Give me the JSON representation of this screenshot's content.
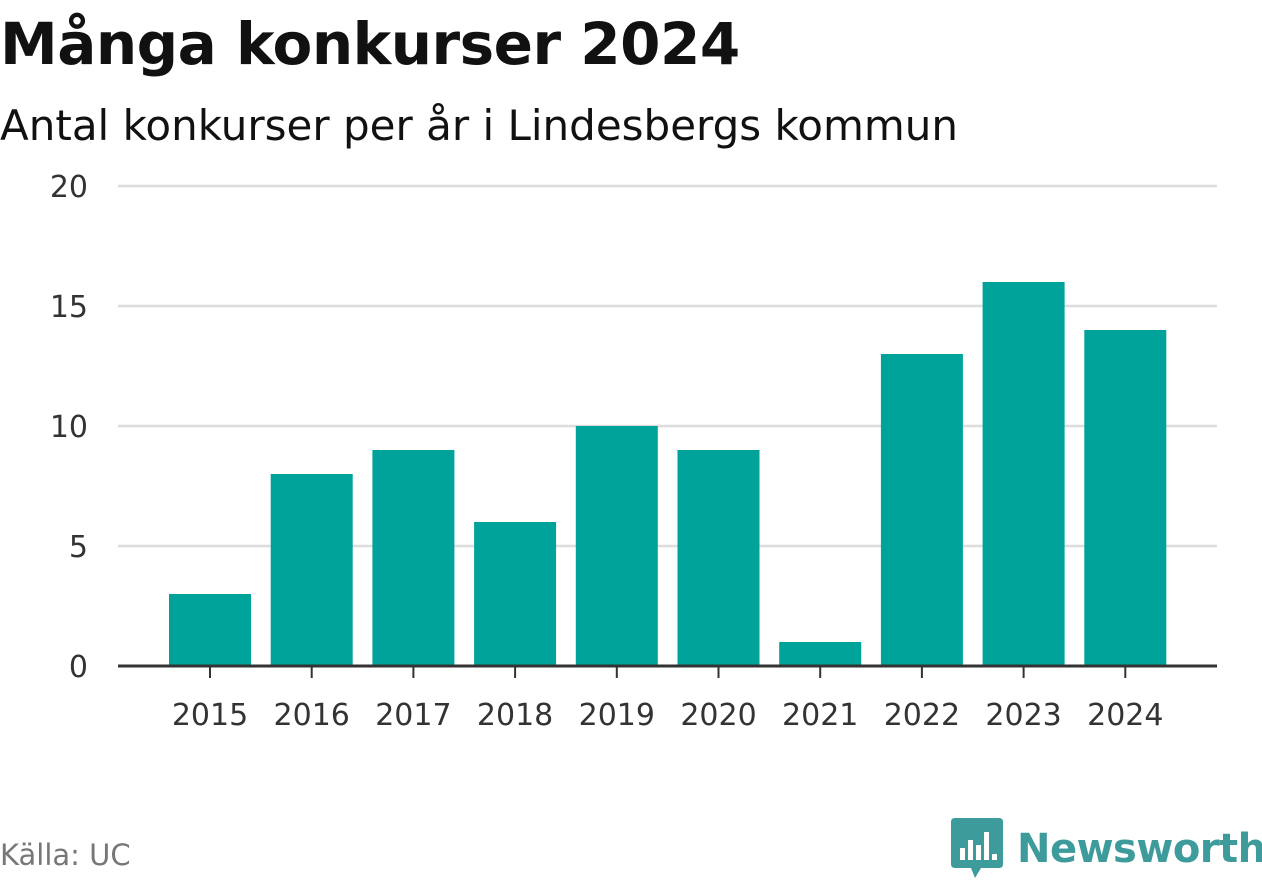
{
  "chart_data": {
    "type": "bar",
    "title": "Många konkurser 2024",
    "subtitle": "Antal konkurser per år i Lindesbergs kommun",
    "xlabel": "",
    "ylabel": "",
    "categories": [
      "2015",
      "2016",
      "2017",
      "2018",
      "2019",
      "2020",
      "2021",
      "2022",
      "2023",
      "2024"
    ],
    "values": [
      3,
      8,
      9,
      6,
      10,
      9,
      1,
      13,
      16,
      14
    ],
    "ylim": [
      0,
      20
    ],
    "yticks": [
      0,
      5,
      10,
      15,
      20
    ],
    "grid": true,
    "legend": "none",
    "bar_color": "#00a39a"
  },
  "footer": {
    "source": "Källa: UC",
    "brand": "Newsworthy",
    "brand_color": "#3d9b9b",
    "brand_icon": "bar-chart-speech-bubble-icon"
  }
}
